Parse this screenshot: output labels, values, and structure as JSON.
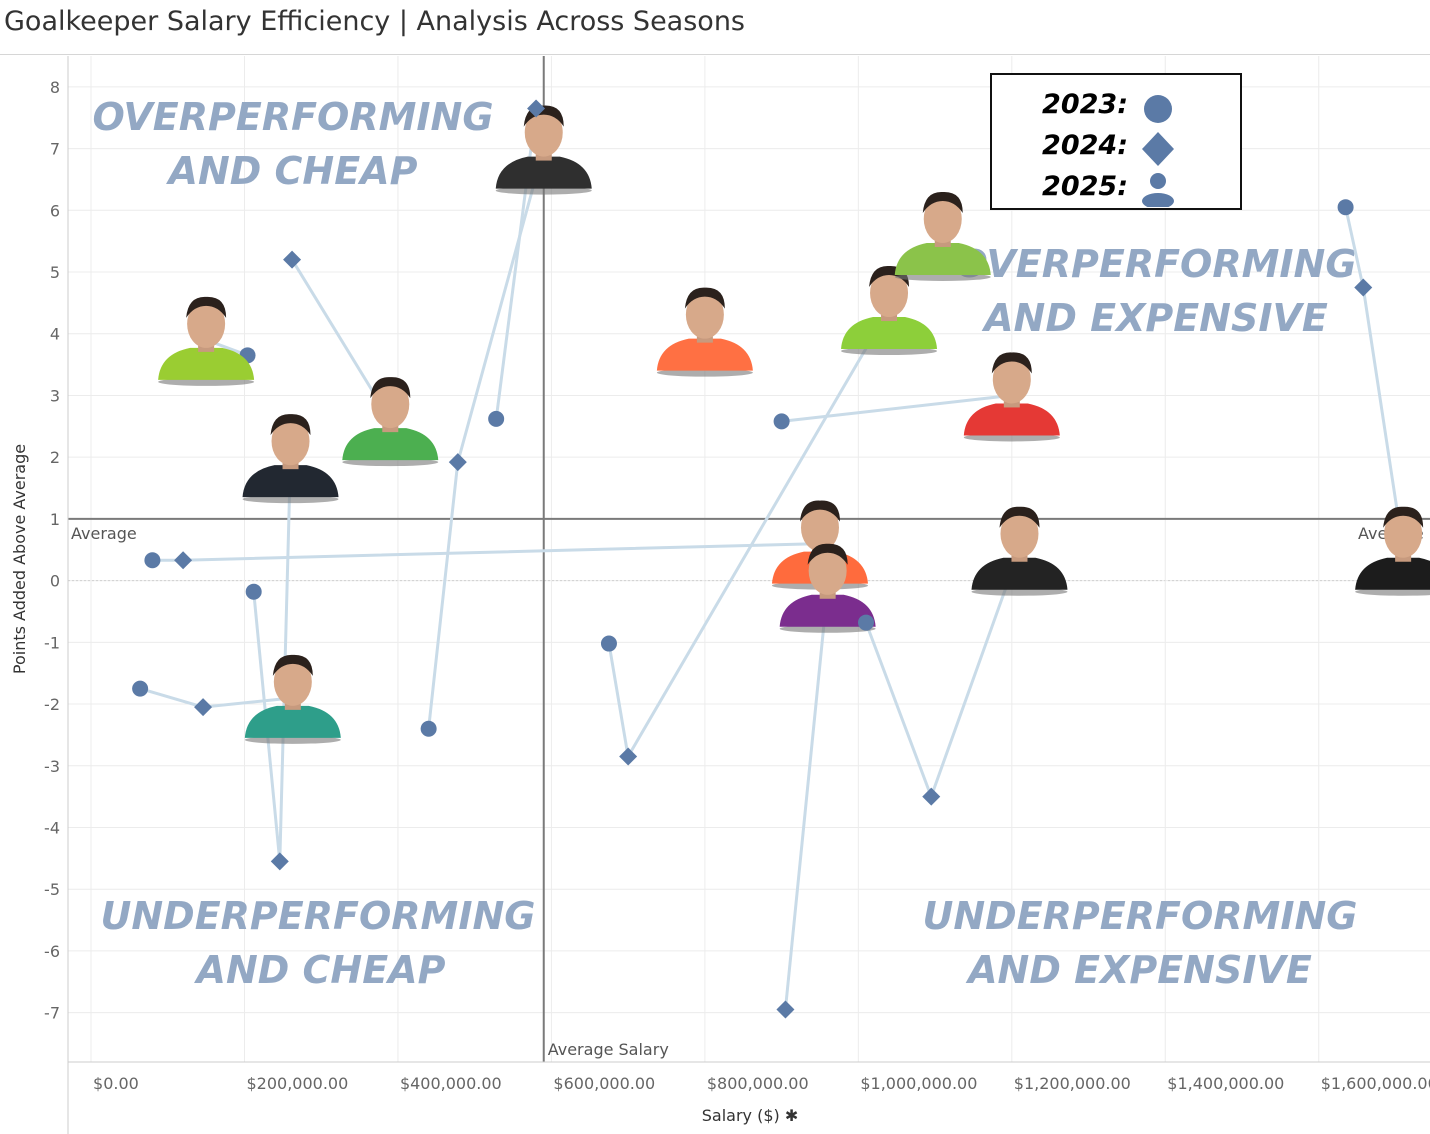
{
  "title": "Goalkeeper Salary Efficiency | Analysis Across Seasons",
  "legend": {
    "items": [
      {
        "label": "2023:",
        "shape": "circle"
      },
      {
        "label": "2024:",
        "shape": "diamond"
      },
      {
        "label": "2025:",
        "shape": "person"
      }
    ]
  },
  "quadrants": {
    "top_left": [
      "OVERPERFORMING",
      "AND CHEAP"
    ],
    "top_right": [
      "OVERPERFORMING",
      "AND EXPENSIVE"
    ],
    "bottom_left": [
      "UNDERPERFORMING",
      "AND CHEAP"
    ],
    "bottom_right": [
      "UNDERPERFORMING",
      "AND EXPENSIVE"
    ]
  },
  "colors": {
    "marker": "#5b7aa6",
    "connector": "#c9dbe8",
    "quadrant_text": "#93a8c4",
    "ref_line": "#7a7a7a",
    "grid": "#ececec"
  },
  "chart_data": {
    "type": "scatter",
    "xlabel": "Salary ($)",
    "ylabel": "Points Added Above Average",
    "xlim": [
      -30000,
      1745000
    ],
    "ylim": [
      -7.8,
      8.5
    ],
    "xticks": [
      {
        "v": 0,
        "label": "$0.00"
      },
      {
        "v": 200000,
        "label": "$200,000.00"
      },
      {
        "v": 400000,
        "label": "$400,000.00"
      },
      {
        "v": 600000,
        "label": "$600,000.00"
      },
      {
        "v": 800000,
        "label": "$800,000.00"
      },
      {
        "v": 1000000,
        "label": "$1,000,000.00"
      },
      {
        "v": 1200000,
        "label": "$1,200,000.00"
      },
      {
        "v": 1400000,
        "label": "$1,400,000.00"
      },
      {
        "v": 1600000,
        "label": "$1,600,000.00"
      }
    ],
    "yticks": [
      8,
      7,
      6,
      5,
      4,
      3,
      2,
      1,
      0,
      -1,
      -2,
      -3,
      -4,
      -5,
      -6,
      -7
    ],
    "reference_lines": {
      "average_y": 1.0,
      "average_y_label": "Average",
      "average_x": 590000,
      "average_x_label": "Average Salary"
    },
    "players": [
      {
        "points": [
          {
            "year": 2023,
            "x": 64000,
            "y": -1.75
          },
          {
            "year": 2024,
            "x": 146000,
            "y": -2.05
          },
          {
            "year": 2025,
            "x": 263000,
            "y": -1.9
          }
        ]
      },
      {
        "points": [
          {
            "year": 2023,
            "x": 212000,
            "y": -0.18
          },
          {
            "year": 2024,
            "x": 246000,
            "y": -4.55
          },
          {
            "year": 2025,
            "x": 260000,
            "y": 2.0
          }
        ]
      },
      {
        "points": [
          {
            "year": 2024,
            "x": 262000,
            "y": 5.2
          },
          {
            "year": 2025,
            "x": 390000,
            "y": 2.6
          }
        ]
      },
      {
        "points": [
          {
            "year": 2023,
            "x": 440000,
            "y": -2.4
          },
          {
            "year": 2024,
            "x": 478000,
            "y": 1.92
          },
          {
            "year": 2025,
            "x": 590000,
            "y": 7.0
          }
        ]
      },
      {
        "points": [
          {
            "year": 2023,
            "x": 528000,
            "y": 2.62
          },
          {
            "year": 2024,
            "x": 580000,
            "y": 7.65
          }
        ]
      },
      {
        "points": [
          {
            "year": 2023,
            "x": 204000,
            "y": 3.65
          },
          {
            "year": 2025,
            "x": 150000,
            "y": 3.9
          }
        ]
      },
      {
        "points": [
          {
            "year": 2023,
            "x": 80000,
            "y": 0.33
          },
          {
            "year": 2024,
            "x": 120000,
            "y": 0.33
          },
          {
            "year": 2025,
            "x": 950000,
            "y": 0.6
          }
        ]
      },
      {
        "points": [
          {
            "year": 2023,
            "x": 675000,
            "y": -1.02
          },
          {
            "year": 2024,
            "x": 700000,
            "y": -2.85
          },
          {
            "year": 2025,
            "x": 1040000,
            "y": 4.4
          }
        ]
      },
      {
        "points": [
          {
            "year": 2024,
            "x": 905000,
            "y": -6.95
          },
          {
            "year": 2025,
            "x": 960000,
            "y": -0.1
          }
        ]
      },
      {
        "points": [
          {
            "year": 2023,
            "x": 1010000,
            "y": -0.68
          },
          {
            "year": 2024,
            "x": 1095000,
            "y": -3.5
          },
          {
            "year": 2025,
            "x": 1210000,
            "y": 0.5
          }
        ]
      },
      {
        "points": [
          {
            "year": 2023,
            "x": 900000,
            "y": 2.58
          },
          {
            "year": 2025,
            "x": 1200000,
            "y": 3.0
          }
        ]
      },
      {
        "points": [
          {
            "year": 2025,
            "x": 800000,
            "y": 4.05
          }
        ]
      },
      {
        "points": [
          {
            "year": 2025,
            "x": 1110000,
            "y": 5.6
          }
        ]
      },
      {
        "points": [
          {
            "year": 2023,
            "x": 1635000,
            "y": 6.05
          },
          {
            "year": 2024,
            "x": 1658000,
            "y": 4.75
          },
          {
            "year": 2025,
            "x": 1710000,
            "y": 0.5
          }
        ]
      }
    ]
  }
}
